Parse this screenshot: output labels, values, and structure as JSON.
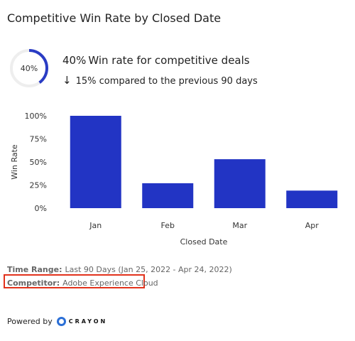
{
  "header": {
    "title": "Competitive Win Rate by Closed Date"
  },
  "kpi": {
    "ring_label": "40%",
    "ring_value": 0.4,
    "ring_color": "#2a3cc4",
    "percent": "40%",
    "text": "Win rate for competitive deals",
    "change_arrow": "down-arrow-icon",
    "change_text": "15% compared to the previous 90 days"
  },
  "chart_data": {
    "type": "bar",
    "categories": [
      "Jan",
      "Feb",
      "Mar",
      "Apr"
    ],
    "values": [
      100,
      27,
      53,
      19
    ],
    "xlabel": "Closed Date",
    "ylabel": "Win Rate",
    "ylim": [
      0,
      100
    ],
    "yticks": [
      "0%",
      "25%",
      "50%",
      "75%",
      "100%"
    ],
    "bar_color": "#2234c4",
    "grid": false
  },
  "footer": {
    "time_range_label": "Time Range:",
    "time_range_value": "Last 90 Days (Jan 25, 2022  - Apr 24, 2022)",
    "competitor_label": "Competitor:",
    "competitor_value": "Adobe Experience Cloud",
    "powered_by": "Powered by",
    "brand": "CRAYON",
    "highlight_color": "#e2321c"
  }
}
